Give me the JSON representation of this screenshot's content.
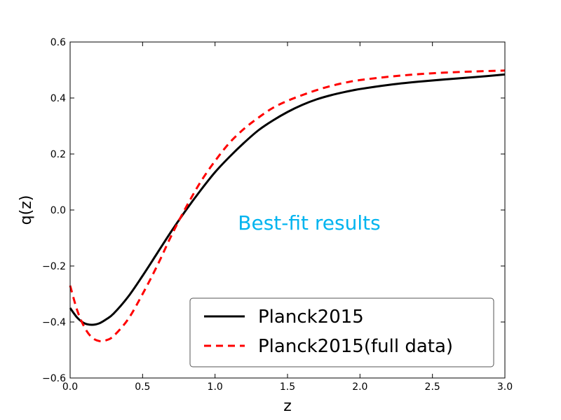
{
  "chart_data": {
    "type": "line",
    "title": "",
    "xlabel": "z",
    "ylabel": "q(z)",
    "xlim": [
      0.0,
      3.0
    ],
    "ylim": [
      -0.6,
      0.6
    ],
    "xticks": [
      0.0,
      0.5,
      1.0,
      1.5,
      2.0,
      2.5,
      3.0
    ],
    "xtick_labels": [
      "0.0",
      "0.5",
      "1.0",
      "1.5",
      "2.0",
      "2.5",
      "3.0"
    ],
    "yticks": [
      -0.6,
      -0.4,
      -0.2,
      0.0,
      0.2,
      0.4,
      0.6
    ],
    "ytick_labels": [
      "−0.6",
      "−0.4",
      "−0.2",
      "0.0",
      "0.2",
      "0.4",
      "0.6"
    ],
    "grid": false,
    "legend_position": "lower-right",
    "annotation": {
      "text": "Best-fit results",
      "color": "#00b4ef",
      "x": 1.65,
      "y": -0.07
    },
    "series": [
      {
        "name": "Planck2015",
        "color": "#000000",
        "style": "solid",
        "x": [
          0.0,
          0.05,
          0.1,
          0.15,
          0.2,
          0.25,
          0.3,
          0.4,
          0.5,
          0.6,
          0.7,
          0.8,
          0.9,
          1.0,
          1.1,
          1.2,
          1.3,
          1.4,
          1.5,
          1.6,
          1.7,
          1.8,
          1.9,
          2.0,
          2.2,
          2.4,
          2.6,
          2.8,
          3.0
        ],
        "y": [
          -0.35,
          -0.385,
          -0.405,
          -0.41,
          -0.405,
          -0.39,
          -0.37,
          -0.31,
          -0.235,
          -0.155,
          -0.075,
          0.0,
          0.07,
          0.135,
          0.19,
          0.24,
          0.285,
          0.32,
          0.35,
          0.375,
          0.395,
          0.41,
          0.422,
          0.432,
          0.447,
          0.458,
          0.467,
          0.475,
          0.484
        ]
      },
      {
        "name": "Planck2015(full data)",
        "color": "#ff0000",
        "style": "dashed",
        "x": [
          0.0,
          0.05,
          0.1,
          0.15,
          0.2,
          0.25,
          0.3,
          0.4,
          0.5,
          0.6,
          0.7,
          0.8,
          0.9,
          1.0,
          1.1,
          1.2,
          1.3,
          1.4,
          1.5,
          1.6,
          1.7,
          1.8,
          1.9,
          2.0,
          2.2,
          2.4,
          2.6,
          2.8,
          3.0
        ],
        "y": [
          -0.27,
          -0.36,
          -0.42,
          -0.455,
          -0.468,
          -0.465,
          -0.45,
          -0.39,
          -0.3,
          -0.2,
          -0.09,
          0.01,
          0.1,
          0.175,
          0.24,
          0.29,
          0.33,
          0.365,
          0.39,
          0.41,
          0.428,
          0.443,
          0.455,
          0.464,
          0.476,
          0.485,
          0.491,
          0.495,
          0.498
        ]
      }
    ]
  }
}
